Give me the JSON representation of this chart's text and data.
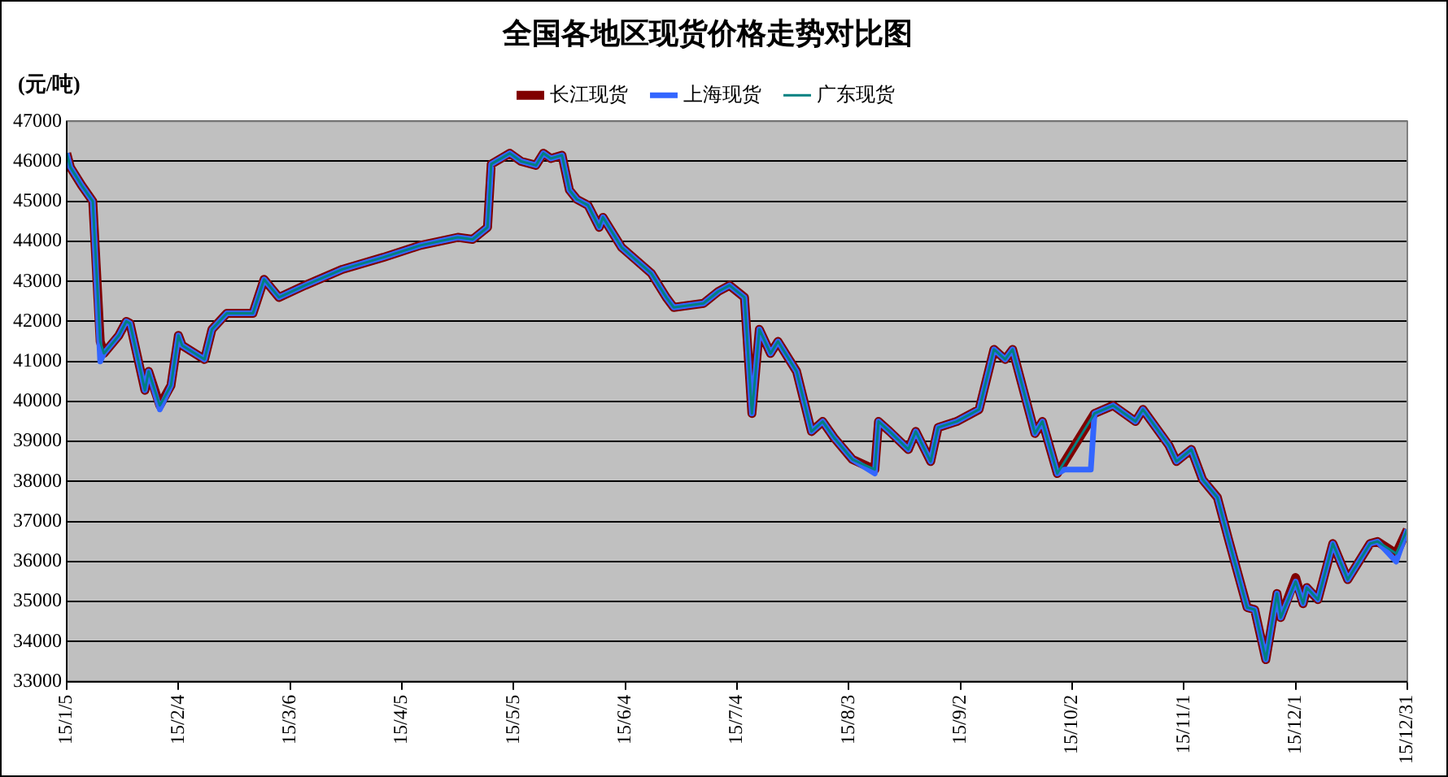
{
  "chart_data": {
    "type": "line",
    "title": "全国各地区现货价格走势对比图",
    "ylabel": "(元/吨)",
    "x": [
      "--01-05",
      "--01-06",
      "--01-09",
      "--01-12",
      "--01-14",
      "--01-15",
      "--01-19",
      "--01-21",
      "--01-22",
      "--01-26",
      "--01-27",
      "--01-30",
      "--02-02",
      "--02-04",
      "--02-05",
      "--02-11",
      "--02-13",
      "--02-17",
      "--02-24",
      "--02-27",
      "--03-03",
      "--03-10",
      "--03-20",
      "--03-31",
      "--04-10",
      "--04-20",
      "--04-24",
      "--04-28",
      "--04-29",
      "--05-04",
      "--05-07",
      "--05-11",
      "--05-13",
      "--05-15",
      "--05-18",
      "--05-20",
      "--05-22",
      "--05-25",
      "--05-28",
      "--05-29",
      "--06-03",
      "--06-11",
      "--06-15",
      "--06-17",
      "--06-25",
      "--06-29",
      "--07-02",
      "--07-06",
      "--07-08",
      "--07-10",
      "--07-13",
      "--07-15",
      "--07-20",
      "--07-24",
      "--07-27",
      "--07-30",
      "--08-04",
      "--08-10",
      "--08-11",
      "--08-14",
      "--08-19",
      "--08-21",
      "--08-25",
      "--08-27",
      "--09-01",
      "--09-07",
      "--09-11",
      "--09-14",
      "--09-16",
      "--09-22",
      "--09-24",
      "--09-28",
      "--10-08",
      "--10-13",
      "--10-19",
      "--10-21",
      "--10-28",
      "--10-30",
      "--11-03",
      "--11-06",
      "--11-10",
      "--11-13",
      "--11-18",
      "--11-20",
      "--11-23",
      "--11-26",
      "--11-27",
      "--12-01",
      "--12-03",
      "--12-04",
      "--12-07",
      "--12-11",
      "--12-15",
      "--12-21",
      "--12-23",
      "--12-28",
      "--12-31"
    ],
    "series": [
      {
        "name": "长江现货",
        "color": "#800000",
        "values": [
          46200,
          45850,
          45400,
          45000,
          41500,
          41200,
          41650,
          42000,
          41950,
          40280,
          40750,
          39900,
          40400,
          41650,
          41400,
          41050,
          41800,
          42200,
          42200,
          43050,
          42600,
          42900,
          43300,
          43600,
          43900,
          44100,
          44050,
          44350,
          45930,
          46200,
          46000,
          45900,
          46200,
          46070,
          46150,
          45280,
          45050,
          44900,
          44350,
          44600,
          43850,
          43200,
          42600,
          42350,
          42450,
          42750,
          42900,
          42600,
          39700,
          41800,
          41200,
          41500,
          40750,
          39250,
          39500,
          39100,
          38550,
          38300,
          39500,
          39250,
          38800,
          39250,
          38500,
          39350,
          39500,
          39800,
          41300,
          41050,
          41300,
          39200,
          39500,
          38200,
          39700,
          39900,
          39500,
          39800,
          38900,
          38500,
          38800,
          38050,
          37600,
          36550,
          34850,
          34800,
          33550,
          35200,
          34600,
          35600,
          34950,
          35350,
          35050,
          36450,
          35550,
          36450,
          36500,
          36200,
          36800
        ]
      },
      {
        "name": "上海现货",
        "color": "#3366ff",
        "x": [
          "--01-05",
          "--01-06",
          "--01-09",
          "--01-12",
          "--01-14",
          "--01-15",
          "--01-19",
          "--01-21",
          "--01-22",
          "--01-26",
          "--01-27",
          "--01-30",
          "--02-02",
          "--02-04",
          "--02-05",
          "--02-11",
          "--02-13",
          "--02-17",
          "--02-24",
          "--02-27",
          "--03-03",
          "--03-10",
          "--03-20",
          "--03-31",
          "--04-10",
          "--04-20",
          "--04-24",
          "--04-28",
          "--04-29",
          "--05-04",
          "--05-07",
          "--05-11",
          "--05-13",
          "--05-15",
          "--05-18",
          "--05-20",
          "--05-22",
          "--05-25",
          "--05-28",
          "--05-29",
          "--06-03",
          "--06-11",
          "--06-15",
          "--06-17",
          "--06-25",
          "--06-29",
          "--07-02",
          "--07-06",
          "--07-08",
          "--07-10",
          "--07-13",
          "--07-15",
          "--07-20",
          "--07-24",
          "--07-27",
          "--07-30",
          "--08-04",
          "--08-10",
          "--08-11",
          "--08-14",
          "--08-19",
          "--08-21",
          "--08-25",
          "--08-27",
          "--09-01",
          "--09-07",
          "--09-11",
          "--09-14",
          "--09-16",
          "--09-22",
          "--09-24",
          "--09-28",
          "--09-30",
          "--10-07",
          "--10-08",
          "--10-13",
          "--10-19",
          "--10-21",
          "--10-28",
          "--10-30",
          "--11-03",
          "--11-06",
          "--11-10",
          "--11-13",
          "--11-18",
          "--11-20",
          "--11-23",
          "--11-26",
          "--11-27",
          "--12-01",
          "--12-03",
          "--12-04",
          "--12-07",
          "--12-11",
          "--12-15",
          "--12-21",
          "--12-23",
          "--12-28",
          "--12-31"
        ],
        "values": [
          46200,
          45850,
          45400,
          45000,
          41000,
          41200,
          41650,
          42000,
          41950,
          40280,
          40750,
          39800,
          40400,
          41650,
          41400,
          41050,
          41800,
          42200,
          42200,
          43050,
          42600,
          42900,
          43300,
          43600,
          43900,
          44100,
          44050,
          44350,
          45930,
          46200,
          46000,
          45900,
          46200,
          46070,
          46150,
          45280,
          45050,
          44900,
          44350,
          44600,
          43850,
          43200,
          42600,
          42350,
          42450,
          42750,
          42900,
          42600,
          39700,
          41800,
          41200,
          41500,
          40750,
          39250,
          39500,
          39100,
          38550,
          38200,
          39500,
          39250,
          38800,
          39250,
          38500,
          39350,
          39500,
          39800,
          41300,
          41050,
          41300,
          39200,
          39500,
          38200,
          38300,
          38300,
          39700,
          39900,
          39500,
          39800,
          38900,
          38500,
          38800,
          38050,
          37600,
          36550,
          34850,
          34800,
          33550,
          35200,
          34600,
          35500,
          34950,
          35350,
          35050,
          36450,
          35550,
          36450,
          36500,
          36000,
          36800
        ]
      },
      {
        "name": "广东现货",
        "color": "#008080",
        "values": [
          46200,
          45850,
          45400,
          45000,
          41500,
          41200,
          41650,
          42000,
          41950,
          40280,
          40750,
          39900,
          40400,
          41650,
          41400,
          41050,
          41800,
          42200,
          42200,
          43050,
          42600,
          42900,
          43300,
          43600,
          43900,
          44100,
          44050,
          44350,
          45930,
          46200,
          46000,
          45900,
          46200,
          46070,
          46150,
          45280,
          45050,
          44900,
          44350,
          44600,
          43850,
          43200,
          42600,
          42350,
          42450,
          42750,
          42900,
          42600,
          39700,
          41800,
          41200,
          41500,
          40750,
          39250,
          39500,
          39100,
          38550,
          38300,
          39500,
          39250,
          38800,
          39250,
          38500,
          39350,
          39500,
          39800,
          41300,
          41050,
          41300,
          39200,
          39500,
          38200,
          39700,
          39900,
          39500,
          39800,
          38900,
          38500,
          38800,
          38050,
          37600,
          36550,
          34850,
          34800,
          33550,
          35200,
          34600,
          35500,
          34950,
          35350,
          35050,
          36450,
          35550,
          36450,
          36500,
          36200,
          36800
        ]
      }
    ],
    "xlim": [
      "--01-05",
      "--12-31"
    ],
    "xticks": [
      {
        "value": "--01-05",
        "label": "15/1/5"
      },
      {
        "value": "--02-04",
        "label": "15/2/4"
      },
      {
        "value": "--03-06",
        "label": "15/3/6"
      },
      {
        "value": "--04-05",
        "label": "15/4/5"
      },
      {
        "value": "--05-05",
        "label": "15/5/5"
      },
      {
        "value": "--06-04",
        "label": "15/6/4"
      },
      {
        "value": "--07-04",
        "label": "15/7/4"
      },
      {
        "value": "--08-03",
        "label": "15/8/3"
      },
      {
        "value": "--09-02",
        "label": "15/9/2"
      },
      {
        "value": "--10-02",
        "label": "15/10/2"
      },
      {
        "value": "--11-01",
        "label": "15/11/1"
      },
      {
        "value": "--12-01",
        "label": "15/12/1"
      },
      {
        "value": "--12-31",
        "label": "15/12/31"
      }
    ],
    "ylim": [
      33000,
      47000
    ],
    "yticks": [
      33000,
      34000,
      35000,
      36000,
      37000,
      38000,
      39000,
      40000,
      41000,
      42000,
      43000,
      44000,
      45000,
      46000,
      47000
    ],
    "grid": "y",
    "legend": "top",
    "marker": "none",
    "line_style": "solid"
  }
}
